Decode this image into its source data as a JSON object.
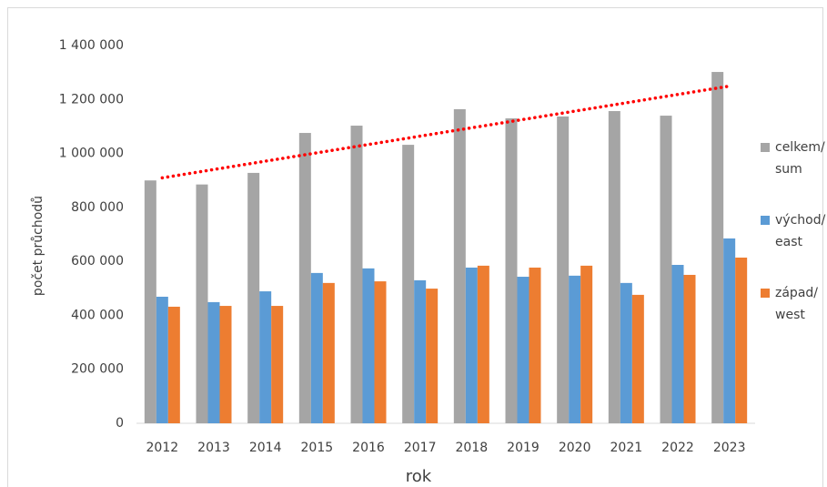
{
  "chart_data": {
    "type": "bar",
    "categories": [
      "2012",
      "2013",
      "2014",
      "2015",
      "2016",
      "2017",
      "2018",
      "2019",
      "2020",
      "2021",
      "2022",
      "2023"
    ],
    "series": [
      {
        "name": "celkem/\nsum",
        "color": "#a5a5a5",
        "values": [
          900000,
          885000,
          928000,
          1076000,
          1103000,
          1032000,
          1164000,
          1130000,
          1137000,
          1157000,
          1140000,
          1302000
        ]
      },
      {
        "name": "východ/\neast",
        "color": "#5b9bd5",
        "values": [
          469000,
          449000,
          489000,
          557000,
          574000,
          530000,
          577000,
          543000,
          547000,
          520000,
          587000,
          685000
        ]
      },
      {
        "name": "západ/\nwest",
        "color": "#ed7d31",
        "values": [
          432000,
          435000,
          435000,
          520000,
          526000,
          499000,
          584000,
          577000,
          584000,
          476000,
          550000,
          614000
        ]
      }
    ],
    "ylim": [
      0,
      1400000
    ],
    "yticks": [
      0,
      {
        "value": 200000,
        "label": "200 000"
      },
      {
        "value": 400000,
        "label": "400 000"
      },
      {
        "value": 600000,
        "label": "600 000"
      },
      {
        "value": 800000,
        "label": "800 000"
      },
      {
        "value": 1000000,
        "label": "1 000 000"
      },
      {
        "value": 1200000,
        "label": "1 200 000"
      },
      {
        "value": 1400000,
        "label": "1 400 000"
      }
    ],
    "x_label": "rok",
    "y_label": "počet průchodů",
    "grid": false,
    "legend": "right",
    "trendline": {
      "series": 0,
      "kind": "linear",
      "color": "#ff0000"
    }
  }
}
